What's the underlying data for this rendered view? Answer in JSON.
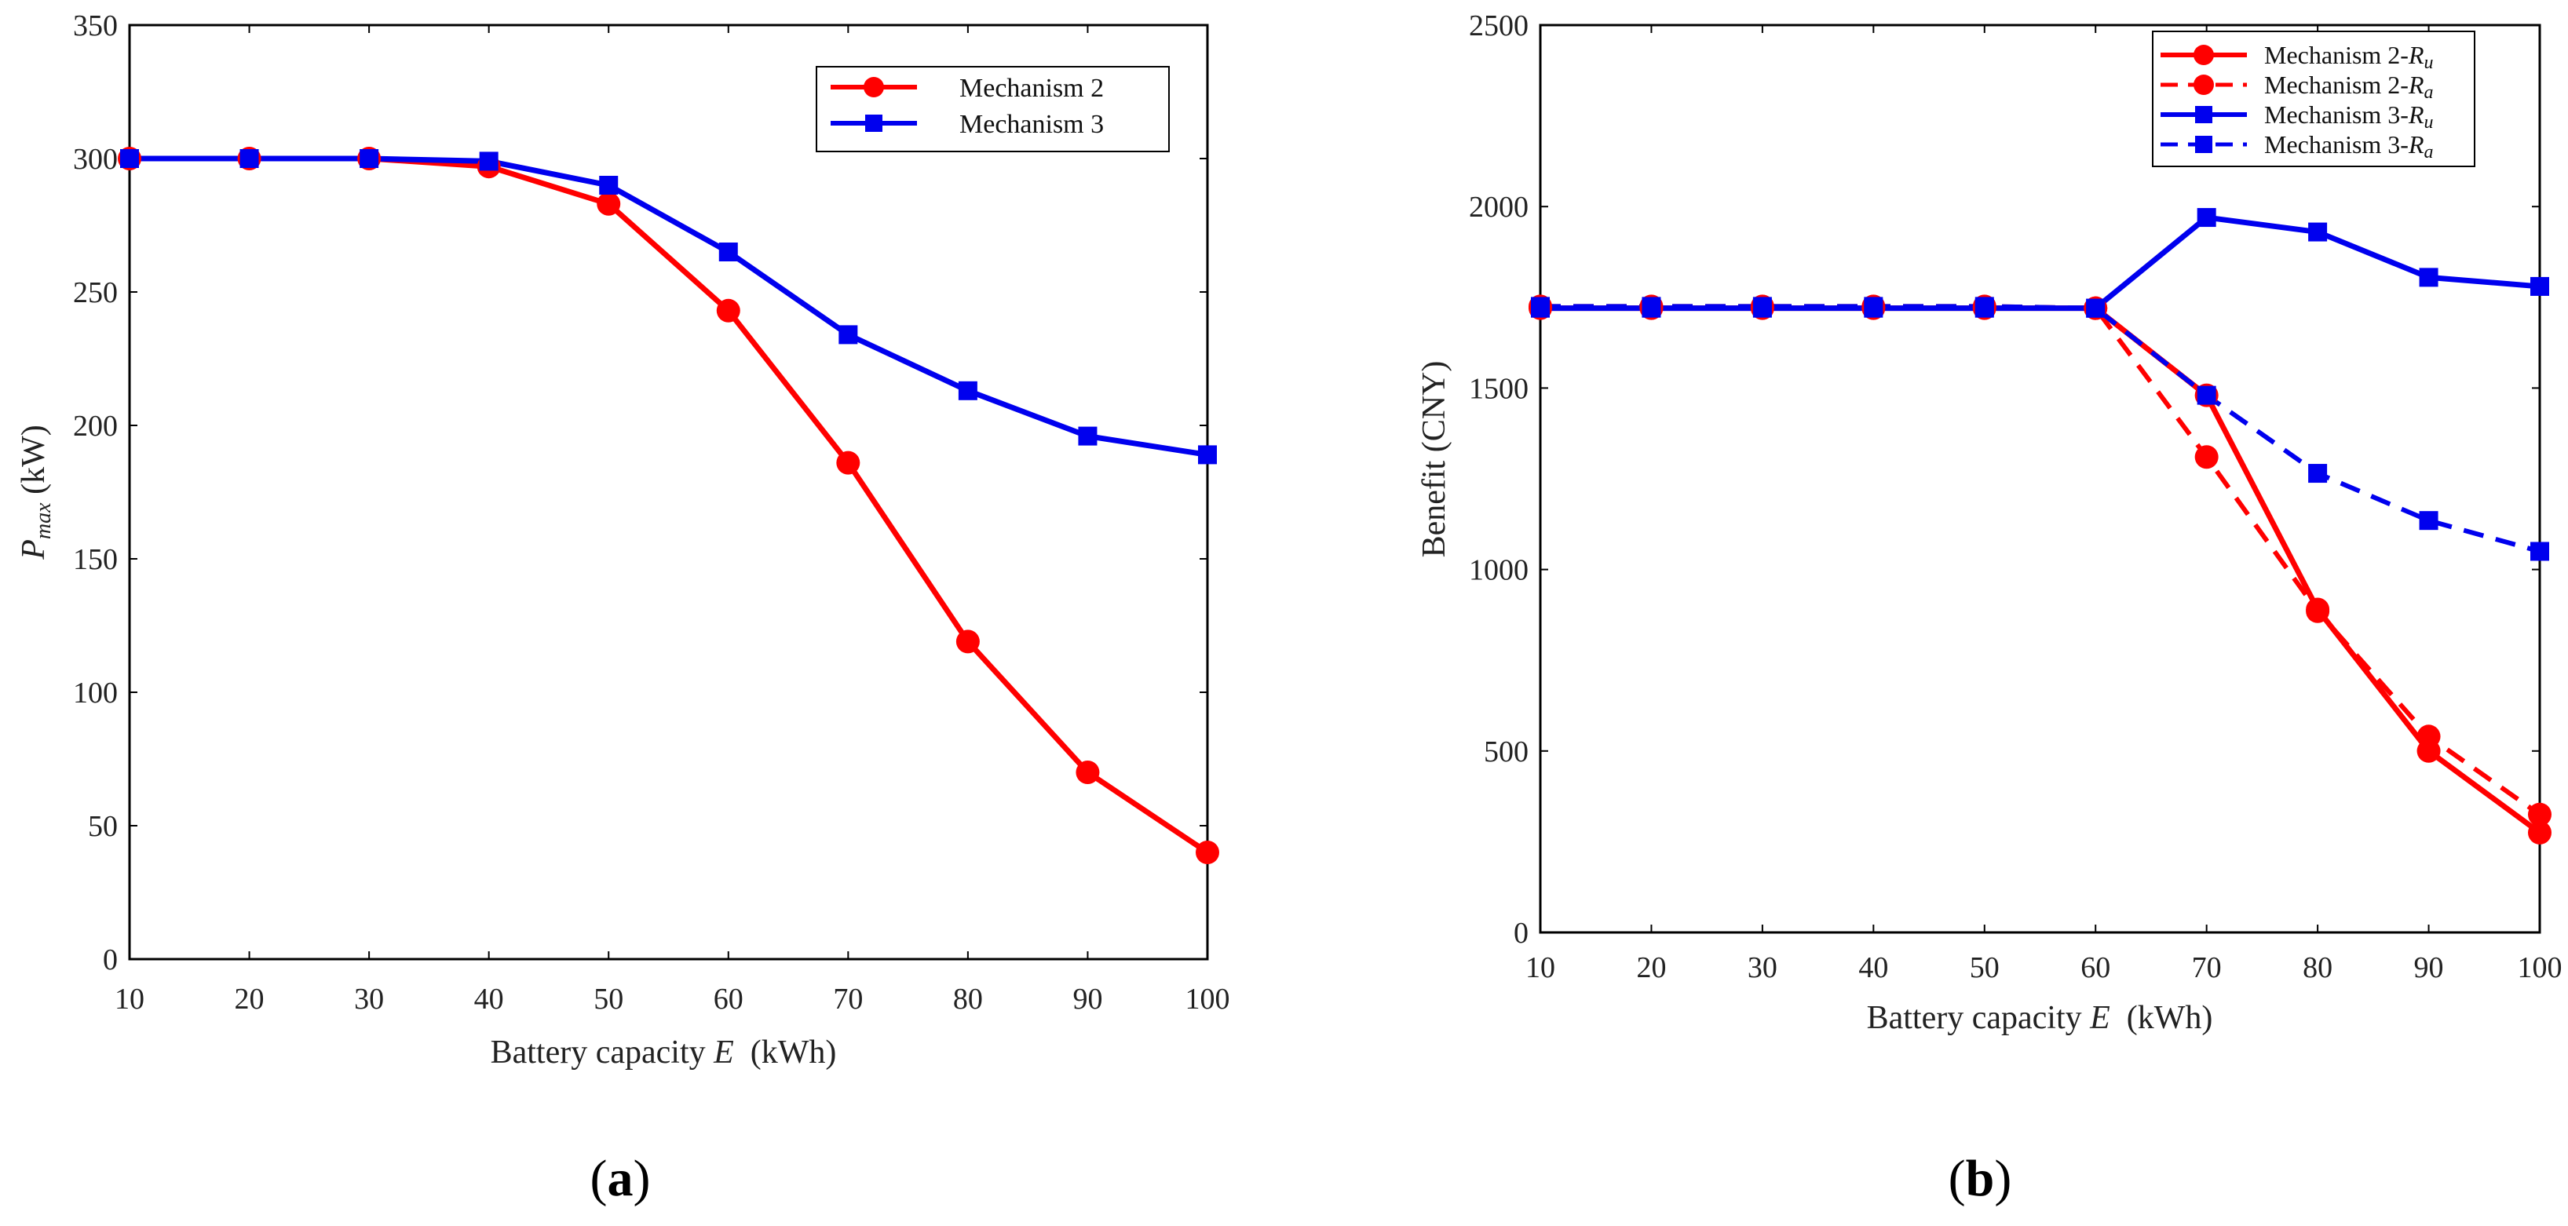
{
  "chart_data": [
    {
      "id": "a",
      "type": "line",
      "panel_label": "a",
      "panel_label_open": "(",
      "panel_label_close": ")",
      "xlabel_prefix": "Battery capacity ",
      "xlabel_var": "E",
      "xlabel_unit": "  (kWh)",
      "ylabel_var": "P",
      "ylabel_sub": "max",
      "ylabel_unit": " (kW)",
      "x": [
        10,
        20,
        30,
        40,
        50,
        60,
        70,
        80,
        90,
        100
      ],
      "xlim": [
        10,
        100
      ],
      "ylim": [
        0,
        350
      ],
      "xticks": [
        10,
        20,
        30,
        40,
        50,
        60,
        70,
        80,
        90,
        100
      ],
      "yticks": [
        0,
        50,
        100,
        150,
        200,
        250,
        300,
        350
      ],
      "legend_position": "top-right",
      "series": [
        {
          "name": "Mechanism 2",
          "color": "#ff0000",
          "marker": "circle",
          "dash": "solid",
          "values": [
            300,
            300,
            300,
            297,
            283,
            243,
            186,
            119,
            70,
            40
          ]
        },
        {
          "name": "Mechanism 3",
          "color": "#0000ee",
          "marker": "square",
          "dash": "solid",
          "values": [
            300,
            300,
            300,
            299,
            290,
            265,
            234,
            213,
            196,
            189
          ]
        }
      ]
    },
    {
      "id": "b",
      "type": "line",
      "panel_label": "b",
      "panel_label_open": "(",
      "panel_label_close": ")",
      "xlabel_prefix": "Battery capacity ",
      "xlabel_var": "E",
      "xlabel_unit": "  (kWh)",
      "ylabel": "Benefit (CNY)",
      "x": [
        10,
        20,
        30,
        40,
        50,
        60,
        70,
        80,
        90,
        100
      ],
      "xlim": [
        10,
        100
      ],
      "ylim": [
        0,
        2500
      ],
      "xticks": [
        10,
        20,
        30,
        40,
        50,
        60,
        70,
        80,
        90,
        100
      ],
      "yticks": [
        0,
        500,
        1000,
        1500,
        2000,
        2500
      ],
      "legend_position": "top-right",
      "series": [
        {
          "name": "Mechanism 2-",
          "name_var": "R",
          "name_sub": "u",
          "color": "#ff0000",
          "marker": "circle",
          "dash": "solid",
          "values": [
            1720,
            1720,
            1720,
            1720,
            1720,
            1720,
            1480,
            890,
            500,
            275
          ]
        },
        {
          "name": "Mechanism 2-",
          "name_var": "R",
          "name_sub": "a",
          "color": "#ff0000",
          "marker": "circle",
          "dash": "dashed",
          "values": [
            1725,
            1725,
            1725,
            1725,
            1725,
            1720,
            1310,
            885,
            540,
            325
          ]
        },
        {
          "name": "Mechanism 3-",
          "name_var": "R",
          "name_sub": "u",
          "color": "#0000ee",
          "marker": "square",
          "dash": "solid",
          "values": [
            1720,
            1720,
            1720,
            1720,
            1720,
            1720,
            1970,
            1930,
            1805,
            1780
          ]
        },
        {
          "name": "Mechanism 3-",
          "name_var": "R",
          "name_sub": "a",
          "color": "#0000ee",
          "marker": "square",
          "dash": "dashed",
          "values": [
            1725,
            1725,
            1725,
            1725,
            1725,
            1720,
            1480,
            1265,
            1135,
            1050
          ]
        }
      ]
    }
  ]
}
